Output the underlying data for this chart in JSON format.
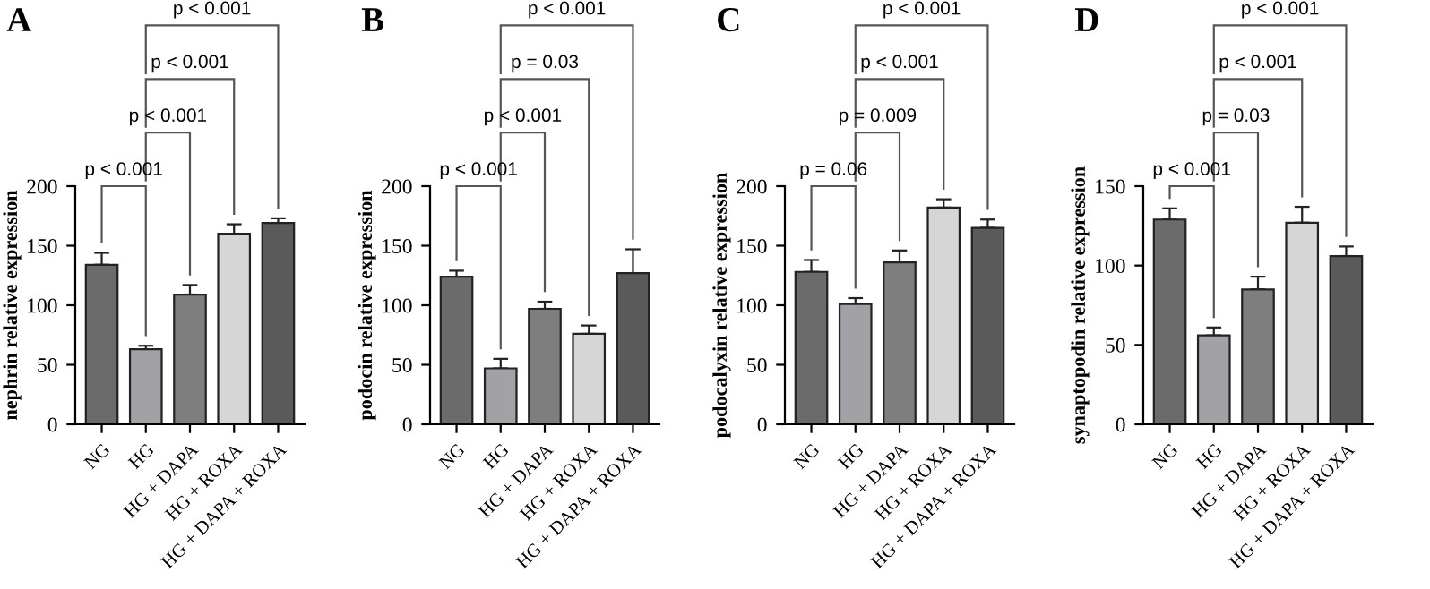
{
  "chart_data": [
    {
      "type": "bar",
      "title": "A",
      "ylabel": "nephrin relative expression",
      "categories": [
        "NG",
        "HG",
        "HG + DAPA",
        "HG + ROXA",
        "HG + DAPA + ROXA"
      ],
      "values": [
        134,
        63,
        109,
        160,
        169
      ],
      "errors": [
        [
          134,
          144
        ],
        [
          63,
          66
        ],
        [
          109,
          117
        ],
        [
          160,
          168
        ],
        [
          169,
          173
        ]
      ],
      "colors": [
        "#6b6b6b",
        "#a2a2a6",
        "#7e7e7e",
        "#d6d6d6",
        "#5a5a5a"
      ],
      "ylim": [
        0,
        200
      ],
      "yticks": [
        0,
        50,
        100,
        150,
        200
      ],
      "grid": false,
      "legend": false,
      "annotations": [
        "p < 0.001",
        "p < 0.001",
        "p < 0.001",
        "p < 0.001"
      ]
    },
    {
      "type": "bar",
      "title": "B",
      "ylabel": "podocin relative expression",
      "categories": [
        "NG",
        "HG",
        "HG + DAPA",
        "HG + ROXA",
        "HG + DAPA + ROXA"
      ],
      "values": [
        124,
        47,
        97,
        76,
        127
      ],
      "errors": [
        [
          124,
          129
        ],
        [
          47,
          55
        ],
        [
          97,
          103
        ],
        [
          76,
          83
        ],
        [
          127,
          147
        ]
      ],
      "colors": [
        "#6b6b6b",
        "#a2a2a6",
        "#7e7e7e",
        "#d6d6d6",
        "#5a5a5a"
      ],
      "ylim": [
        0,
        200
      ],
      "yticks": [
        0,
        50,
        100,
        150,
        200
      ],
      "grid": false,
      "legend": false,
      "annotations": [
        "p < 0.001",
        "p < 0.001",
        "p = 0.03",
        "p < 0.001"
      ]
    },
    {
      "type": "bar",
      "title": "C",
      "ylabel": "podocalyxin relative expression",
      "categories": [
        "NG",
        "HG",
        "HG + DAPA",
        "HG + ROXA",
        "HG + DAPA + ROXA"
      ],
      "values": [
        128,
        101,
        136,
        182,
        165
      ],
      "errors": [
        [
          128,
          138
        ],
        [
          101,
          106
        ],
        [
          136,
          146
        ],
        [
          182,
          189
        ],
        [
          165,
          172
        ]
      ],
      "colors": [
        "#6b6b6b",
        "#a2a2a6",
        "#7e7e7e",
        "#d6d6d6",
        "#5a5a5a"
      ],
      "ylim": [
        0,
        200
      ],
      "yticks": [
        0,
        50,
        100,
        150,
        200
      ],
      "grid": false,
      "legend": false,
      "annotations": [
        "p = 0.06",
        "p = 0.009",
        "p < 0.001",
        "p < 0.001"
      ]
    },
    {
      "type": "bar",
      "title": "D",
      "ylabel": "synaptopodin relative expression",
      "categories": [
        "NG",
        "HG",
        "HG + DAPA",
        "HG + ROXA",
        "HG + DAPA + ROXA"
      ],
      "values": [
        129,
        56,
        85,
        127,
        106
      ],
      "errors": [
        [
          129,
          136
        ],
        [
          56,
          61
        ],
        [
          85,
          93
        ],
        [
          127,
          137
        ],
        [
          106,
          112
        ]
      ],
      "colors": [
        "#6b6b6b",
        "#a2a2a6",
        "#7e7e7e",
        "#d6d6d6",
        "#5a5a5a"
      ],
      "ylim": [
        0,
        150
      ],
      "yticks": [
        0,
        50,
        100,
        150
      ],
      "grid": false,
      "legend": false,
      "annotations": [
        "p < 0.001",
        "p = 0.03",
        "p < 0.001",
        "p < 0.001"
      ]
    }
  ]
}
